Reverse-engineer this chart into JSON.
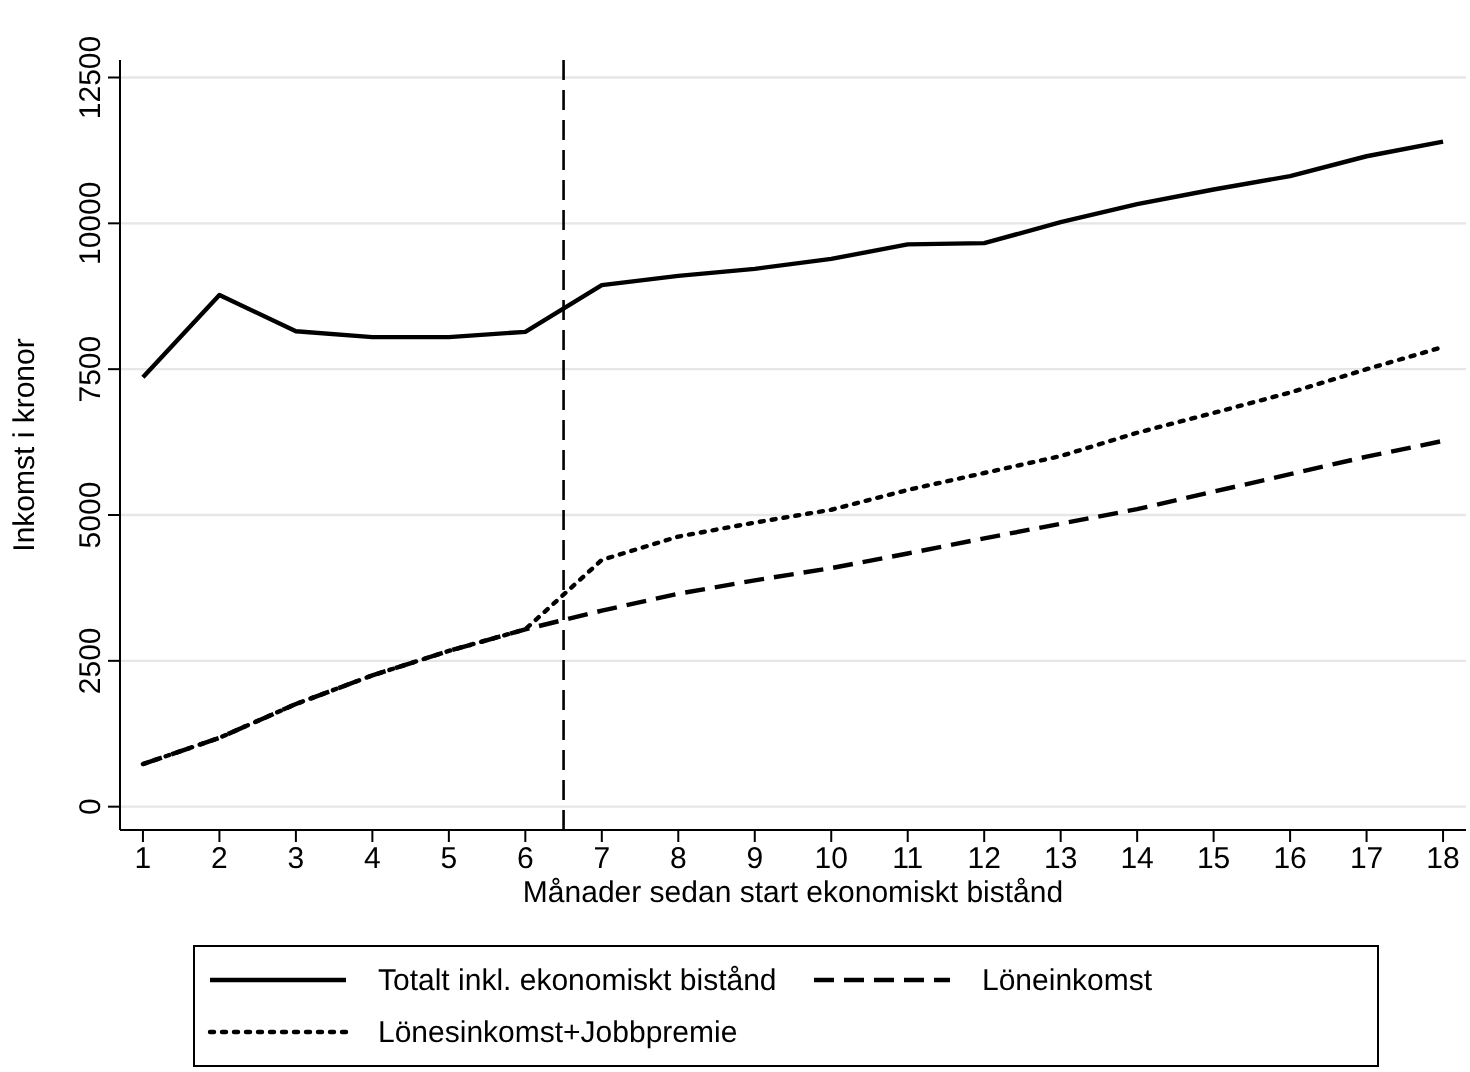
{
  "chart_data": {
    "type": "line",
    "xlabel": "Månader sedan start ekonomiskt bistånd",
    "ylabel": "Inkomst i kronor",
    "x": [
      1,
      2,
      3,
      4,
      5,
      6,
      7,
      8,
      9,
      10,
      11,
      12,
      13,
      14,
      15,
      16,
      17,
      18
    ],
    "xlim": [
      0.7,
      18.3
    ],
    "xticks": [
      1,
      2,
      3,
      4,
      5,
      6,
      7,
      8,
      9,
      10,
      11,
      12,
      13,
      14,
      15,
      16,
      17,
      18
    ],
    "ylim": [
      -400,
      12800
    ],
    "yticks": [
      0,
      2500,
      5000,
      7500,
      10000,
      12500
    ],
    "grid": "y",
    "legend": "bottom",
    "marker": "none",
    "ref_lines": [
      {
        "axis": "x",
        "value": 6.5,
        "line_style": "dashed",
        "color": "#000000"
      }
    ],
    "series": [
      {
        "name": "Totalt inkl. ekonomiskt bistånd",
        "color": "#000000",
        "line_style": "solid",
        "values": [
          7360,
          8770,
          8150,
          8050,
          8050,
          8140,
          8940,
          9100,
          9220,
          9390,
          9640,
          9660,
          10020,
          10330,
          10580,
          10810,
          11150,
          11400
        ]
      },
      {
        "name": "Löneinkomst",
        "color": "#000000",
        "line_style": "dashed",
        "values": [
          730,
          1180,
          1760,
          2250,
          2670,
          3040,
          3360,
          3650,
          3880,
          4090,
          4340,
          4600,
          4850,
          5100,
          5400,
          5700,
          6000,
          6270
        ]
      },
      {
        "name": "Lönesinkomst+Jobbpremie",
        "color": "#000000",
        "line_style": "dotted",
        "values": [
          730,
          1180,
          1760,
          2250,
          2670,
          3040,
          4230,
          4630,
          4870,
          5090,
          5430,
          5720,
          6010,
          6410,
          6750,
          7100,
          7500,
          7880
        ]
      }
    ]
  }
}
